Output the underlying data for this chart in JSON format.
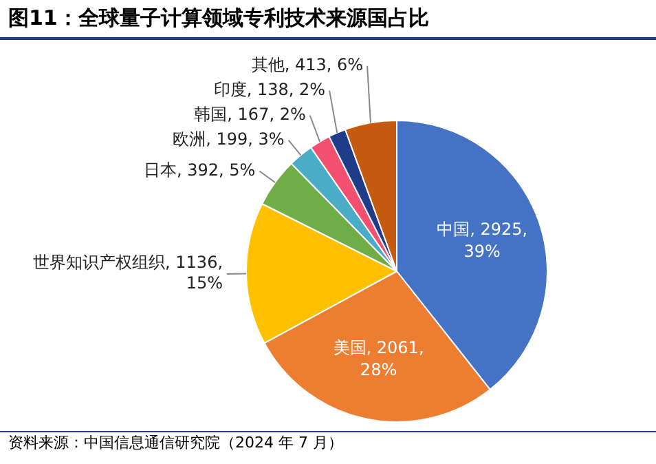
{
  "chart_data": {
    "type": "pie",
    "title": "图11：全球量子计算领域专利技术来源国占比",
    "categories": [
      "中国",
      "美国",
      "世界知识产权组织",
      "日本",
      "欧洲",
      "韩国",
      "印度",
      "其他"
    ],
    "values": [
      2925,
      2061,
      1136,
      392,
      199,
      167,
      138,
      413
    ],
    "value_labels": [
      "2925, 39%",
      "2061, 28%",
      "1136, 15%",
      "392, 5%",
      "199, 3%",
      "167, 2%",
      "138, 2%",
      "413, 6%"
    ],
    "colors": [
      "#4472c4",
      "#ed7d31",
      "#ffc000",
      "#70ad47",
      "#4bacc6",
      "#f2506e",
      "#1f3c88",
      "#c55a11"
    ],
    "legend": false,
    "annotations": [
      "资料来源：中国信息通信研究院（2024 年 7 月）"
    ]
  }
}
